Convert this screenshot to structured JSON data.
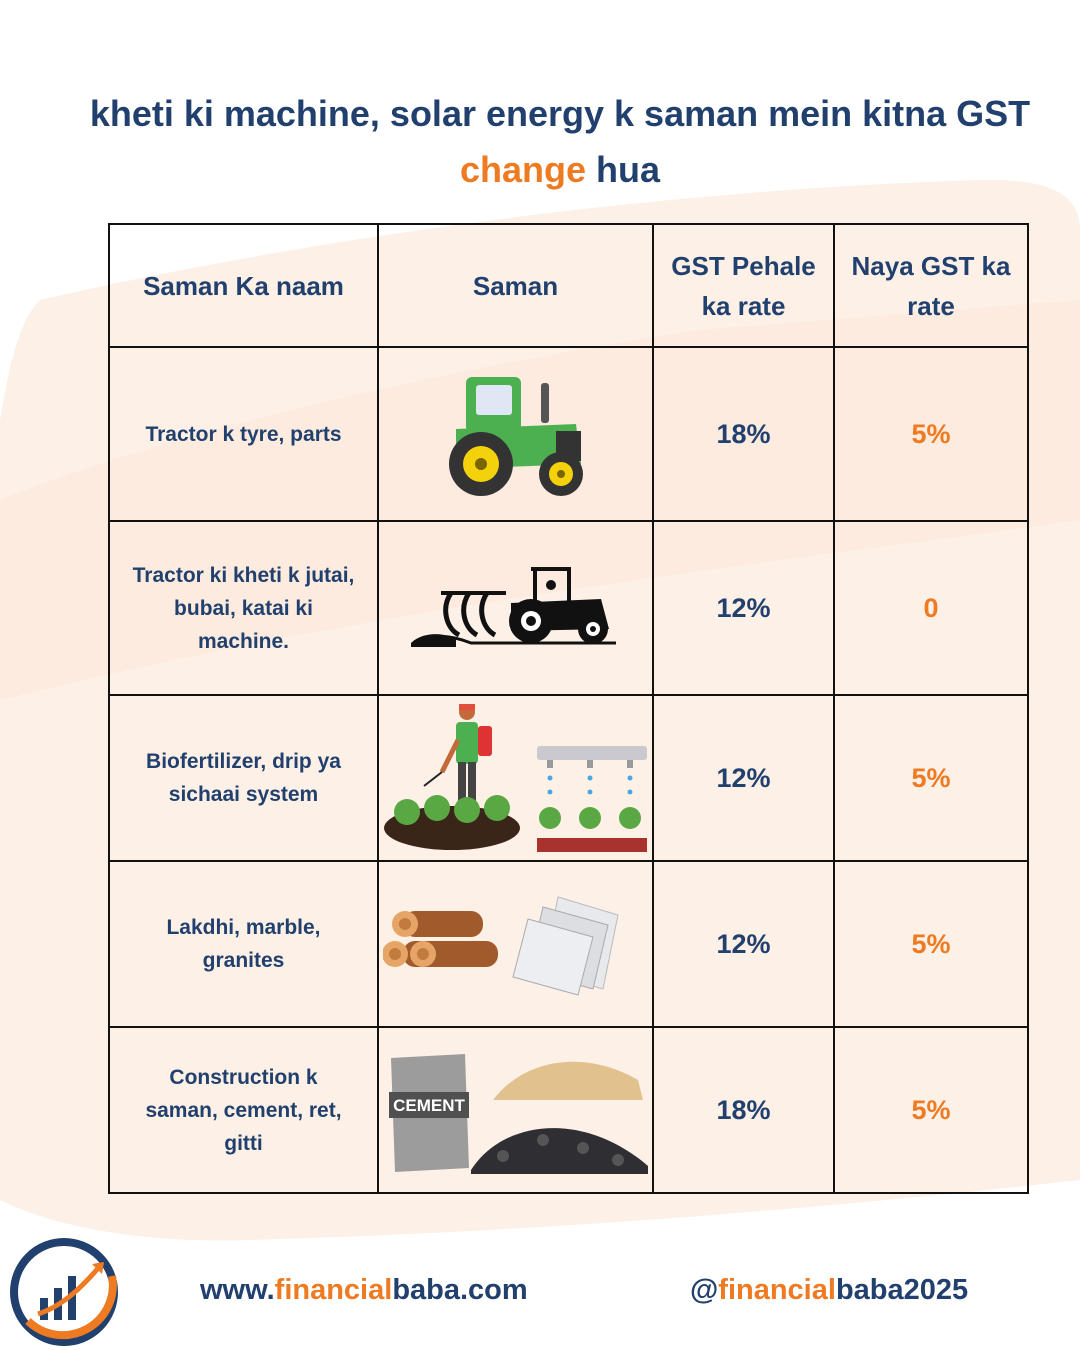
{
  "title": {
    "line1": "kheti ki machine, solar energy k saman mein kitna GST",
    "line2_orange": "change",
    "line2_rest": " hua"
  },
  "table": {
    "headers": {
      "name": "Saman Ka naam",
      "item": "Saman",
      "old_rate": "GST Pehale ka rate",
      "new_rate": "Naya GST ka rate"
    },
    "rows": [
      {
        "name": "Tractor k tyre, parts",
        "image": "green-tractor-icon",
        "old": "18%",
        "new": "5%"
      },
      {
        "name": "Tractor ki kheti k jutai, bubai, katai ki machine.",
        "image": "tractor-plough-icon",
        "old": "12%",
        "new": "0"
      },
      {
        "name": "Biofertilizer, drip ya sichaai system",
        "image": "farmer-sprayer-drip-icon",
        "old": "12%",
        "new": "5%"
      },
      {
        "name": "Lakdhi, marble, granites",
        "image": "logs-and-tiles-icon",
        "old": "12%",
        "new": "5%"
      },
      {
        "name": "Construction k saman, cement, ret, gitti",
        "image": "cement-sand-gravel-icon",
        "old": "18%",
        "new": "5%"
      }
    ],
    "cement_bag_label": "CEMENT"
  },
  "footer": {
    "site_prefix": "www.",
    "site_orange": "financial",
    "site_middle": "baba",
    "site_suffix": ".com",
    "handle_prefix": "@",
    "handle_orange": "financial",
    "handle_rest": "baba2025"
  },
  "colors": {
    "navy": "#22406e",
    "orange": "#ee7a22",
    "wash": "#fdf0e6"
  }
}
